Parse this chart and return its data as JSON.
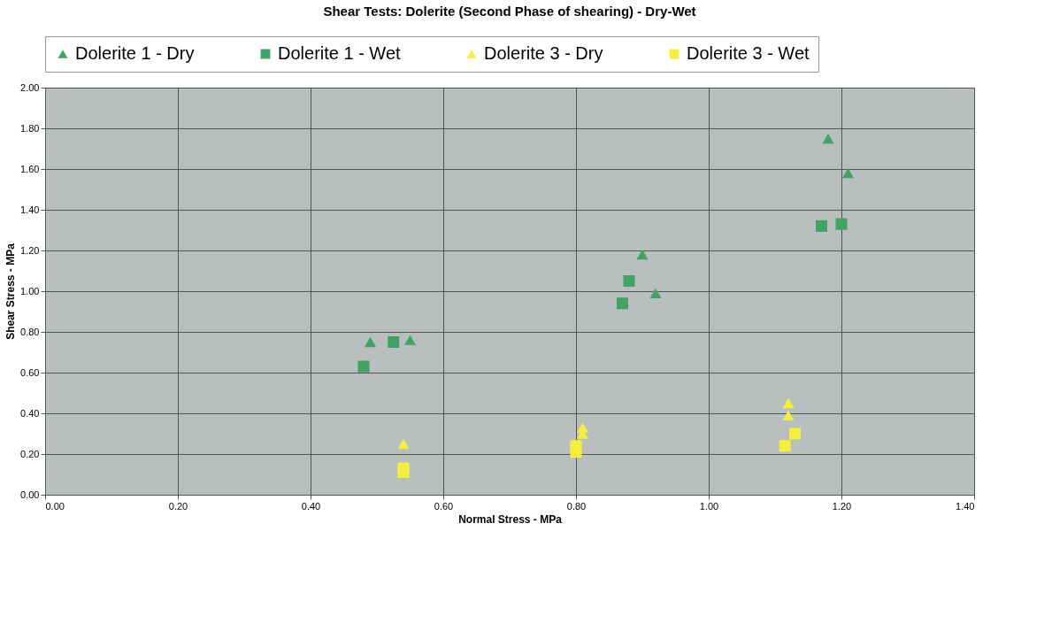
{
  "chart_data": {
    "type": "scatter",
    "title": "Shear Tests:  Dolerite (Second Phase of shearing) - Dry-Wet",
    "xlabel": "Normal Stress - MPa",
    "ylabel": "Shear Stress - MPa",
    "xlim": [
      0,
      1.4
    ],
    "ylim": [
      0,
      2
    ],
    "xticks": [
      {
        "value": 0,
        "label": "0.00"
      },
      {
        "value": 0.2,
        "label": "0.20"
      },
      {
        "value": 0.4,
        "label": "0.40"
      },
      {
        "value": 0.6,
        "label": "0.60"
      },
      {
        "value": 0.8,
        "label": "0.80"
      },
      {
        "value": 1.0,
        "label": "1.00"
      },
      {
        "value": 1.2,
        "label": "1.20"
      },
      {
        "value": 1.4,
        "label": "1.40"
      }
    ],
    "yticks": [
      {
        "value": 0,
        "label": "0.00"
      },
      {
        "value": 0.2,
        "label": "0.20"
      },
      {
        "value": 0.4,
        "label": "0.40"
      },
      {
        "value": 0.6,
        "label": "0.60"
      },
      {
        "value": 0.8,
        "label": "0.80"
      },
      {
        "value": 1.0,
        "label": "1.00"
      },
      {
        "value": 1.2,
        "label": "1.20"
      },
      {
        "value": 1.4,
        "label": "1.40"
      },
      {
        "value": 1.6,
        "label": "1.60"
      },
      {
        "value": 1.8,
        "label": "1.80"
      },
      {
        "value": 2.0,
        "label": "2.00"
      }
    ],
    "grid": true,
    "legend": "top",
    "series": [
      {
        "name": "Dolerite 1 - Dry",
        "color": "#3fa463",
        "marker": "triangle",
        "x": [
          0.49,
          0.55,
          0.9,
          0.92,
          1.18,
          1.21
        ],
        "values": [
          0.75,
          0.76,
          1.18,
          0.99,
          1.75,
          1.58
        ]
      },
      {
        "name": "Dolerite 1 - Wet",
        "color": "#3fa463",
        "marker": "square",
        "x": [
          0.48,
          0.525,
          0.87,
          0.88,
          1.17,
          1.2
        ],
        "values": [
          0.63,
          0.75,
          0.94,
          1.05,
          1.32,
          1.33
        ]
      },
      {
        "name": "Dolerite 3 - Dry",
        "color": "#f5ee3a",
        "marker": "triangle",
        "x": [
          0.54,
          0.81,
          0.81,
          1.12,
          1.12
        ],
        "values": [
          0.25,
          0.33,
          0.3,
          0.45,
          0.39
        ]
      },
      {
        "name": "Dolerite 3 - Wet",
        "color": "#f5ee3a",
        "marker": "square",
        "x": [
          0.54,
          0.54,
          0.8,
          0.8,
          1.115,
          1.13
        ],
        "values": [
          0.13,
          0.11,
          0.24,
          0.21,
          0.24,
          0.3
        ]
      }
    ]
  }
}
